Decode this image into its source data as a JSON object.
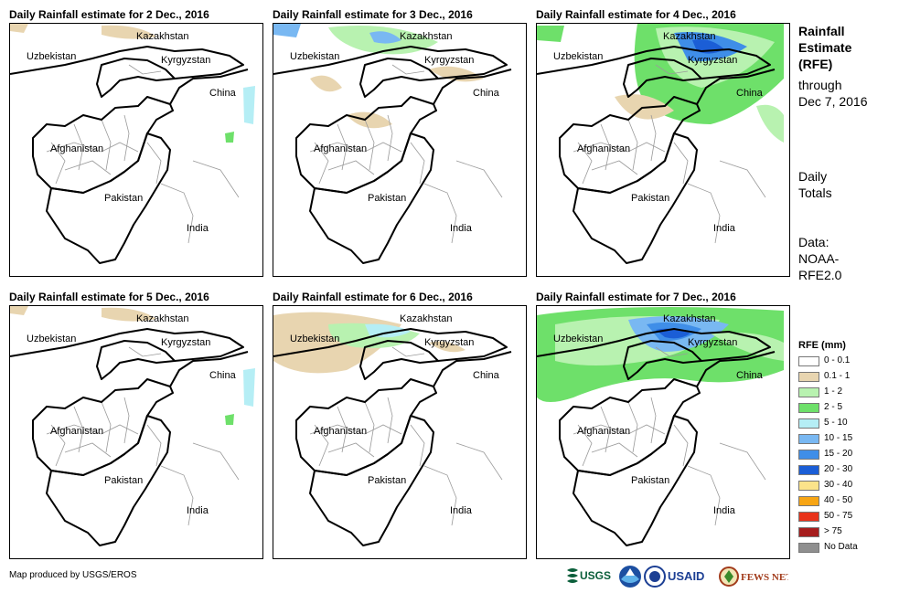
{
  "panels": [
    {
      "title": "Daily Rainfall estimate for 2 Dec., 2016"
    },
    {
      "title": "Daily Rainfall estimate for 3 Dec., 2016"
    },
    {
      "title": "Daily Rainfall estimate for 4 Dec., 2016"
    },
    {
      "title": "Daily Rainfall estimate for 5 Dec., 2016"
    },
    {
      "title": "Daily Rainfall estimate for 6 Dec., 2016"
    },
    {
      "title": "Daily Rainfall estimate for 7 Dec., 2016"
    }
  ],
  "map_labels": {
    "kazakhstan": "Kazakhstan",
    "uzbekistan": "Uzbekistan",
    "kyrgyzstan": "Kyrgyzstan",
    "china": "China",
    "afghanistan": "Afghanistan",
    "pakistan": "Pakistan",
    "india": "India"
  },
  "sidebar": {
    "heading_lines": [
      "Rainfall",
      "Estimate",
      "(RFE)"
    ],
    "through_lines": [
      "through",
      "Dec 7, 2016"
    ],
    "totals_lines": [
      "Daily",
      "Totals"
    ],
    "data_lines": [
      "Data:",
      "NOAA-",
      "RFE2.0"
    ]
  },
  "legend": {
    "title": "RFE (mm)",
    "items": [
      {
        "label": "0 - 0.1",
        "color": "#ffffff"
      },
      {
        "label": "0.1 - 1",
        "color": "#e8d5b0"
      },
      {
        "label": "1 - 2",
        "color": "#b8f2b0"
      },
      {
        "label": "2 - 5",
        "color": "#6ee06a"
      },
      {
        "label": "5 - 10",
        "color": "#b5eef5"
      },
      {
        "label": "10 - 15",
        "color": "#79b8f2"
      },
      {
        "label": "15 - 20",
        "color": "#3f8ee8"
      },
      {
        "label": "20 - 30",
        "color": "#1b5ed6"
      },
      {
        "label": "30 - 40",
        "color": "#fbe38a"
      },
      {
        "label": "40 - 50",
        "color": "#f7a514"
      },
      {
        "label": "50 - 75",
        "color": "#e8321a"
      },
      {
        "label": "> 75",
        "color": "#a61d1d"
      },
      {
        "label": "No Data",
        "color": "#8f8f8f"
      }
    ]
  },
  "footer": {
    "credit": "Map produced by USGS/EROS",
    "logos": [
      "USGS",
      "NOAA",
      "USAID",
      "FEWS NET"
    ]
  }
}
